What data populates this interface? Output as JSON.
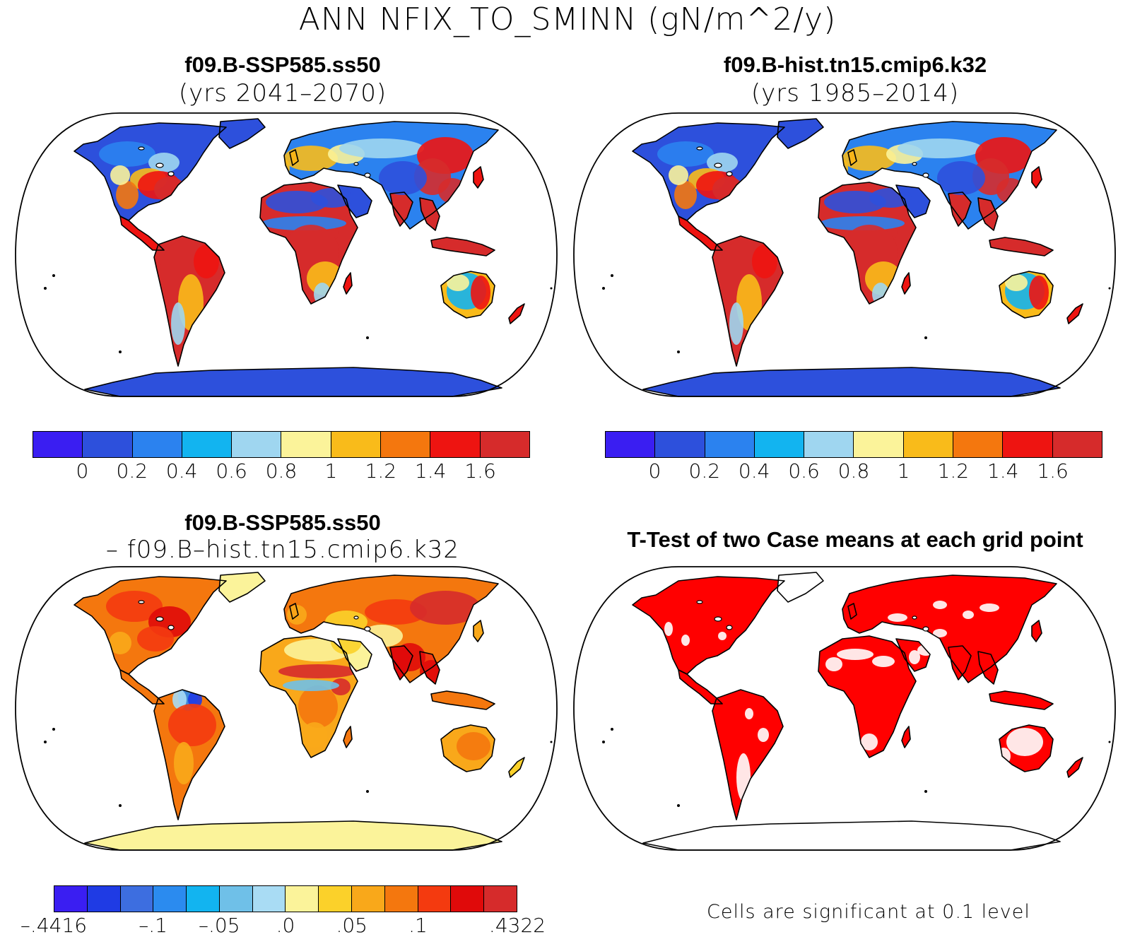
{
  "title": "ANN NFIX_TO_SMINN (gN/m^2/y)",
  "panels": [
    {
      "title": "f09.B-SSP585.ss50",
      "subtitle": "(yrs 2041–2070)",
      "kind": "abs"
    },
    {
      "title": "f09.B-hist.tn15.cmip6.k32",
      "subtitle": "(yrs 1985–2014)",
      "kind": "abs"
    },
    {
      "title": "f09.B-SSP585.ss50",
      "subtitle": "– f09.B–hist.tn15.cmip6.k32",
      "kind": "diff"
    },
    {
      "title": "T-Test of two Case means at each grid point",
      "subtitle": "",
      "kind": "ttest"
    }
  ],
  "colorbar_abs": {
    "colors": [
      "#3a1ef2",
      "#2d50dc",
      "#2b82ef",
      "#12b4f0",
      "#9fd6f0",
      "#fbf39a",
      "#f9bb1a",
      "#f4770e",
      "#ee1411",
      "#d62b2b"
    ],
    "labels": [
      "0",
      "0.2",
      "0.4",
      "0.6",
      "0.8",
      "1",
      "1.2",
      "1.4",
      "1.6"
    ]
  },
  "colorbar_diff": {
    "colors": [
      "#3a1ef2",
      "#1f3be4",
      "#3d6ee0",
      "#2b8bef",
      "#12b4f0",
      "#6fc0e8",
      "#a9dcf4",
      "#fbf39a",
      "#fbd12a",
      "#f9a81a",
      "#f4770e",
      "#f43a0f",
      "#e00a0a",
      "#d62b2b"
    ],
    "labels": [
      "–.4416",
      "–.1",
      "–.05",
      ".0",
      ".05",
      ".1",
      ".4322"
    ]
  },
  "significance_note": "Cells are significant at 0.1 level"
}
